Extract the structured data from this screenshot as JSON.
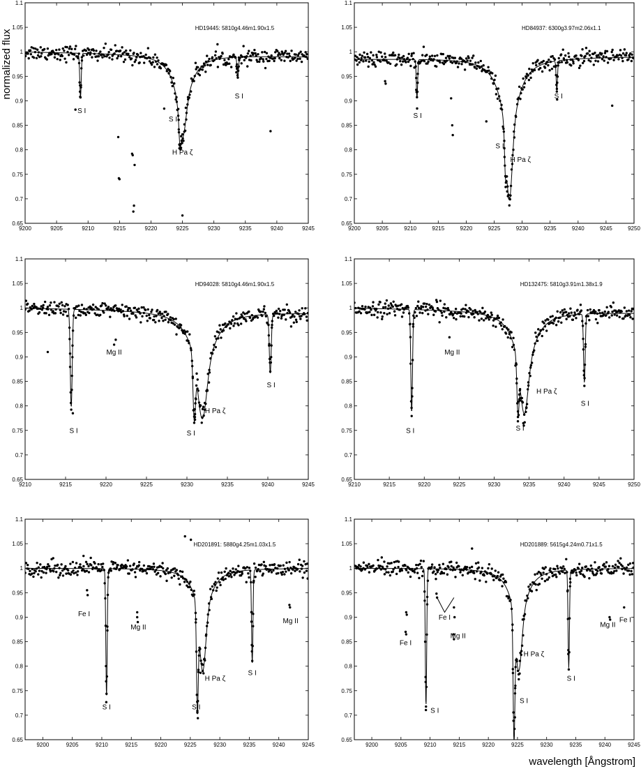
{
  "figure": {
    "ylabel": "normalized flux",
    "xlabel": "wavelength [Ångstrom]"
  },
  "chart_data": [
    {
      "type": "scatter",
      "title": "HD19445: 5810g4.46m1.90x1.5",
      "xlim": [
        9200,
        9245
      ],
      "ylim": [
        0.65,
        1.1
      ],
      "xticks": [
        9200,
        9205,
        9210,
        9215,
        9220,
        9225,
        9230,
        9235,
        9240,
        9245
      ],
      "xticklabels": [
        "9200",
        "9205",
        "9210",
        "9215",
        "9220",
        "9225",
        "9230",
        "9235",
        "9240",
        "9245"
      ],
      "yticks": [
        0.65,
        0.7,
        0.75,
        0.8,
        0.85,
        0.9,
        0.95,
        1.0,
        1.05,
        1.1
      ],
      "yticklabels": [
        "0.65",
        "0.7",
        "0.75",
        "0.8",
        "0.85",
        "0.9",
        "0.95",
        "1",
        "1.05",
        "1.1"
      ],
      "grid": false,
      "model_lines": [
        {
          "center": 9208.8,
          "depth": 0.09,
          "width": 0.12,
          "wing": 0
        },
        {
          "center": 9224.6,
          "depth": 0.04,
          "width": 0.15,
          "wing": 0
        },
        {
          "center": 9225.0,
          "depth": 0.06,
          "width": 0.5,
          "wing": 0.11,
          "wing_width": 1.6
        },
        {
          "center": 9233.8,
          "depth": 0.04,
          "width": 0.12,
          "wing": 0
        }
      ],
      "continuum": [
        1.0,
        0.99
      ],
      "outliers": [
        {
          "x": 9208.0,
          "y": 0.882
        },
        {
          "x": 9214.8,
          "y": 0.826
        },
        {
          "x": 9214.9,
          "y": 0.742
        },
        {
          "x": 9215.0,
          "y": 0.74
        },
        {
          "x": 9217.0,
          "y": 0.792
        },
        {
          "x": 9217.1,
          "y": 0.789
        },
        {
          "x": 9217.4,
          "y": 0.769
        },
        {
          "x": 9217.3,
          "y": 0.686
        },
        {
          "x": 9217.2,
          "y": 0.674
        },
        {
          "x": 9222.1,
          "y": 0.884
        },
        {
          "x": 9225.0,
          "y": 0.666
        },
        {
          "x": 9239.0,
          "y": 0.838
        }
      ],
      "annotations": [
        {
          "text": "S I",
          "x": 9209.0,
          "y": 0.875
        },
        {
          "text": "S I",
          "x": 9223.5,
          "y": 0.858
        },
        {
          "text": "H Pa ζ",
          "x": 9225.0,
          "y": 0.79
        },
        {
          "text": "S I",
          "x": 9234.0,
          "y": 0.905
        }
      ]
    },
    {
      "type": "scatter",
      "title": "HD84937: 6300g3.97m2.06x1.1",
      "xlim": [
        9200,
        9250
      ],
      "ylim": [
        0.65,
        1.1
      ],
      "xticks": [
        9200,
        9205,
        9210,
        9215,
        9220,
        9225,
        9230,
        9235,
        9240,
        9245,
        9250
      ],
      "xticklabels": [
        "9200",
        "9205",
        "9210",
        "9215",
        "9220",
        "9225",
        "9230",
        "9235",
        "9240",
        "9245",
        "9250"
      ],
      "yticks": [
        0.65,
        0.7,
        0.75,
        0.8,
        0.85,
        0.9,
        0.95,
        1.0,
        1.05,
        1.1
      ],
      "yticklabels": [
        "0.65",
        "0.7",
        "0.75",
        "0.8",
        "0.85",
        "0.9",
        "0.95",
        "1",
        "1.05",
        "1.1"
      ],
      "grid": false,
      "model_lines": [
        {
          "center": 9211.2,
          "depth": 0.08,
          "width": 0.12,
          "wing": 0
        },
        {
          "center": 9227.0,
          "depth": 0.06,
          "width": 0.15,
          "wing": 0
        },
        {
          "center": 9227.7,
          "depth": 0.14,
          "width": 0.5,
          "wing": 0.15,
          "wing_width": 1.9
        },
        {
          "center": 9236.2,
          "depth": 0.06,
          "width": 0.12,
          "wing": 0
        }
      ],
      "continuum": [
        0.985,
        0.99
      ],
      "outliers": [
        {
          "x": 9205.5,
          "y": 0.94
        },
        {
          "x": 9205.6,
          "y": 0.935
        },
        {
          "x": 9217.5,
          "y": 0.85
        },
        {
          "x": 9217.6,
          "y": 0.83
        },
        {
          "x": 9217.3,
          "y": 0.905
        },
        {
          "x": 9223.6,
          "y": 0.858
        },
        {
          "x": 9246.1,
          "y": 0.89
        }
      ],
      "annotations": [
        {
          "text": "S I",
          "x": 9211.3,
          "y": 0.865
        },
        {
          "text": "S I",
          "x": 9226.0,
          "y": 0.803
        },
        {
          "text": "H Pa ζ",
          "x": 9229.7,
          "y": 0.775
        },
        {
          "text": "S I",
          "x": 9236.5,
          "y": 0.905
        }
      ]
    },
    {
      "type": "scatter",
      "title": "HD94028: 5810g4.46m1.90x1.5",
      "xlim": [
        9210,
        9245
      ],
      "ylim": [
        0.65,
        1.1
      ],
      "xticks": [
        9210,
        9215,
        9220,
        9225,
        9230,
        9235,
        9240,
        9245
      ],
      "xticklabels": [
        "9210",
        "9215",
        "9220",
        "9225",
        "9230",
        "9235",
        "9240",
        "9245"
      ],
      "yticks": [
        0.65,
        0.7,
        0.75,
        0.8,
        0.85,
        0.9,
        0.95,
        1.0,
        1.05,
        1.1
      ],
      "yticklabels": [
        "0.65",
        "0.7",
        "0.75",
        "0.8",
        "0.85",
        "0.9",
        "0.95",
        "1",
        "1.05",
        "1.1"
      ],
      "grid": false,
      "model_lines": [
        {
          "center": 9215.7,
          "depth": 0.2,
          "width": 0.12,
          "wing": 0
        },
        {
          "center": 9230.9,
          "depth": 0.12,
          "width": 0.15,
          "wing": 0
        },
        {
          "center": 9231.9,
          "depth": 0.09,
          "width": 0.5,
          "wing": 0.13,
          "wing_width": 1.6
        },
        {
          "center": 9240.3,
          "depth": 0.12,
          "width": 0.12,
          "wing": 0
        }
      ],
      "continuum": [
        1.0,
        0.99
      ],
      "outliers": [
        {
          "x": 9212.8,
          "y": 0.91
        },
        {
          "x": 9221.0,
          "y": 0.925
        },
        {
          "x": 9221.2,
          "y": 0.935
        },
        {
          "x": 9230.9,
          "y": 0.778
        },
        {
          "x": 9231.0,
          "y": 0.772
        },
        {
          "x": 9215.9,
          "y": 0.785
        }
      ],
      "annotations": [
        {
          "text": "Mg II",
          "x": 9221.0,
          "y": 0.905
        },
        {
          "text": "S I",
          "x": 9240.4,
          "y": 0.838
        },
        {
          "text": "S I",
          "x": 9216.0,
          "y": 0.745
        },
        {
          "text": "S I",
          "x": 9230.5,
          "y": 0.74
        },
        {
          "text": "H Pa ζ",
          "x": 9233.5,
          "y": 0.785
        }
      ]
    },
    {
      "type": "scatter",
      "title": "HD132475: 5810g3.91m1.38x1.9",
      "xlim": [
        9210,
        9250
      ],
      "ylim": [
        0.65,
        1.1
      ],
      "xticks": [
        9210,
        9215,
        9220,
        9225,
        9230,
        9235,
        9240,
        9245,
        9250
      ],
      "xticklabels": [
        "9210",
        "9215",
        "9220",
        "9225",
        "9230",
        "9235",
        "9240",
        "9245",
        "9250"
      ],
      "yticks": [
        0.65,
        0.7,
        0.75,
        0.8,
        0.85,
        0.9,
        0.95,
        1.0,
        1.05,
        1.1
      ],
      "yticklabels": [
        "0.65",
        "0.7",
        "0.75",
        "0.8",
        "0.85",
        "0.9",
        "0.95",
        "1",
        "1.05",
        "1.1"
      ],
      "grid": false,
      "model_lines": [
        {
          "center": 9218.2,
          "depth": 0.21,
          "width": 0.12,
          "wing": 0
        },
        {
          "center": 9233.4,
          "depth": 0.1,
          "width": 0.15,
          "wing": 0
        },
        {
          "center": 9234.3,
          "depth": 0.08,
          "width": 0.5,
          "wing": 0.13,
          "wing_width": 1.6
        },
        {
          "center": 9242.9,
          "depth": 0.14,
          "width": 0.12,
          "wing": 0
        }
      ],
      "continuum": [
        1.0,
        0.99
      ],
      "outliers": [
        {
          "x": 9223.6,
          "y": 0.94
        }
      ],
      "annotations": [
        {
          "text": "Mg II",
          "x": 9224.0,
          "y": 0.905
        },
        {
          "text": "H Pa ζ",
          "x": 9237.5,
          "y": 0.825
        },
        {
          "text": "S I",
          "x": 9243.0,
          "y": 0.8
        },
        {
          "text": "S I",
          "x": 9218.0,
          "y": 0.745
        },
        {
          "text": "S I",
          "x": 9233.7,
          "y": 0.75
        }
      ]
    },
    {
      "type": "scatter",
      "title": "HD201891: 5880g4.25m1.03x1.5",
      "xlim": [
        9197,
        9245
      ],
      "ylim": [
        0.65,
        1.1
      ],
      "xticks": [
        9200,
        9205,
        9210,
        9215,
        9220,
        9225,
        9230,
        9235,
        9240,
        9245
      ],
      "xticklabels": [
        "9200",
        "9205",
        "9210",
        "9215",
        "9220",
        "9225",
        "9230",
        "9235",
        "9240",
        "9245"
      ],
      "yticks": [
        0.65,
        0.7,
        0.75,
        0.8,
        0.85,
        0.9,
        0.95,
        1.0,
        1.05,
        1.1
      ],
      "yticklabels": [
        "0.65",
        "0.7",
        "0.75",
        "0.8",
        "0.85",
        "0.9",
        "0.95",
        "1",
        "1.05",
        "1.1"
      ],
      "grid": false,
      "model_lines": [
        {
          "center": 9210.8,
          "depth": 0.26,
          "width": 0.12,
          "wing": 0
        },
        {
          "center": 9226.2,
          "depth": 0.2,
          "width": 0.15,
          "wing": 0
        },
        {
          "center": 9227.1,
          "depth": 0.11,
          "width": 0.5,
          "wing": 0.1,
          "wing_width": 1.6
        },
        {
          "center": 9235.5,
          "depth": 0.19,
          "width": 0.12,
          "wing": 0
        }
      ],
      "continuum": [
        1.0,
        1.0
      ],
      "outliers": [
        {
          "x": 9207.5,
          "y": 0.955
        },
        {
          "x": 9207.6,
          "y": 0.945
        },
        {
          "x": 9216.0,
          "y": 0.9
        },
        {
          "x": 9216.1,
          "y": 0.89
        },
        {
          "x": 9216.0,
          "y": 0.91
        },
        {
          "x": 9224.1,
          "y": 1.065
        },
        {
          "x": 9225.1,
          "y": 1.058
        },
        {
          "x": 9241.8,
          "y": 0.925
        },
        {
          "x": 9241.9,
          "y": 0.92
        },
        {
          "x": 9206.9,
          "y": 1.025
        }
      ],
      "annotations": [
        {
          "text": "Fe I",
          "x": 9207.0,
          "y": 0.902
        },
        {
          "text": "Mg II",
          "x": 9216.2,
          "y": 0.875
        },
        {
          "text": "Mg II",
          "x": 9242.0,
          "y": 0.888
        },
        {
          "text": "H Pa ζ",
          "x": 9229.2,
          "y": 0.77
        },
        {
          "text": "S I",
          "x": 9235.5,
          "y": 0.782
        },
        {
          "text": "S I",
          "x": 9210.8,
          "y": 0.712
        },
        {
          "text": "S I",
          "x": 9226.0,
          "y": 0.712
        }
      ]
    },
    {
      "type": "scatter",
      "title": "HD201889: 5615g4.24m0.71x1.5",
      "xlim": [
        9197,
        9245
      ],
      "ylim": [
        0.65,
        1.1
      ],
      "xticks": [
        9200,
        9205,
        9210,
        9215,
        9220,
        9225,
        9230,
        9235,
        9240,
        9245
      ],
      "xticklabels": [
        "9200",
        "9205",
        "9210",
        "9215",
        "9220",
        "9225",
        "9230",
        "9235",
        "9240",
        "9245"
      ],
      "yticks": [
        0.65,
        0.7,
        0.75,
        0.8,
        0.85,
        0.9,
        0.95,
        1.0,
        1.05,
        1.1
      ],
      "yticklabels": [
        "0.65",
        "0.7",
        "0.75",
        "0.8",
        "0.85",
        "0.9",
        "0.95",
        "1",
        "1.05",
        "1.1"
      ],
      "grid": false,
      "model_lines": [
        {
          "center": 9209.3,
          "depth": 0.28,
          "width": 0.12,
          "wing": 0
        },
        {
          "center": 9224.4,
          "depth": 0.24,
          "width": 0.15,
          "wing": 0
        },
        {
          "center": 9225.2,
          "depth": 0.1,
          "width": 0.5,
          "wing": 0.11,
          "wing_width": 1.6
        },
        {
          "center": 9233.8,
          "depth": 0.2,
          "width": 0.12,
          "wing": 0
        }
      ],
      "continuum": [
        1.0,
        1.0
      ],
      "outliers": [
        {
          "x": 9205.9,
          "y": 0.91
        },
        {
          "x": 9206.0,
          "y": 0.905
        },
        {
          "x": 9205.8,
          "y": 0.87
        },
        {
          "x": 9205.9,
          "y": 0.865
        },
        {
          "x": 9211.1,
          "y": 0.948
        },
        {
          "x": 9211.2,
          "y": 0.94
        },
        {
          "x": 9214.1,
          "y": 0.92
        },
        {
          "x": 9214.2,
          "y": 0.9
        },
        {
          "x": 9214.0,
          "y": 0.865
        },
        {
          "x": 9214.1,
          "y": 0.855
        },
        {
          "x": 9217.2,
          "y": 1.04
        },
        {
          "x": 9240.8,
          "y": 0.9
        },
        {
          "x": 9240.9,
          "y": 0.895
        },
        {
          "x": 9243.3,
          "y": 0.92
        }
      ],
      "annotations": [
        {
          "text": "Fe I",
          "x": 9212.5,
          "y": 0.895
        },
        {
          "text": "Mg II",
          "x": 9214.8,
          "y": 0.857
        },
        {
          "text": "Fe I",
          "x": 9205.8,
          "y": 0.843
        },
        {
          "text": "Mg II",
          "x": 9240.5,
          "y": 0.88
        },
        {
          "text": "Fe I",
          "x": 9243.5,
          "y": 0.89
        },
        {
          "text": "H Pa ζ",
          "x": 9227.8,
          "y": 0.82
        },
        {
          "text": "S I",
          "x": 9234.2,
          "y": 0.77
        },
        {
          "text": "S I",
          "x": 9210.8,
          "y": 0.705
        },
        {
          "text": "S I",
          "x": 9226.1,
          "y": 0.725
        }
      ],
      "markers": [
        {
          "type": "v-bracket",
          "x": [
            9211.2,
            9212.5,
            9214.1
          ],
          "y": [
            0.94,
            0.91,
            0.94
          ]
        }
      ]
    }
  ]
}
